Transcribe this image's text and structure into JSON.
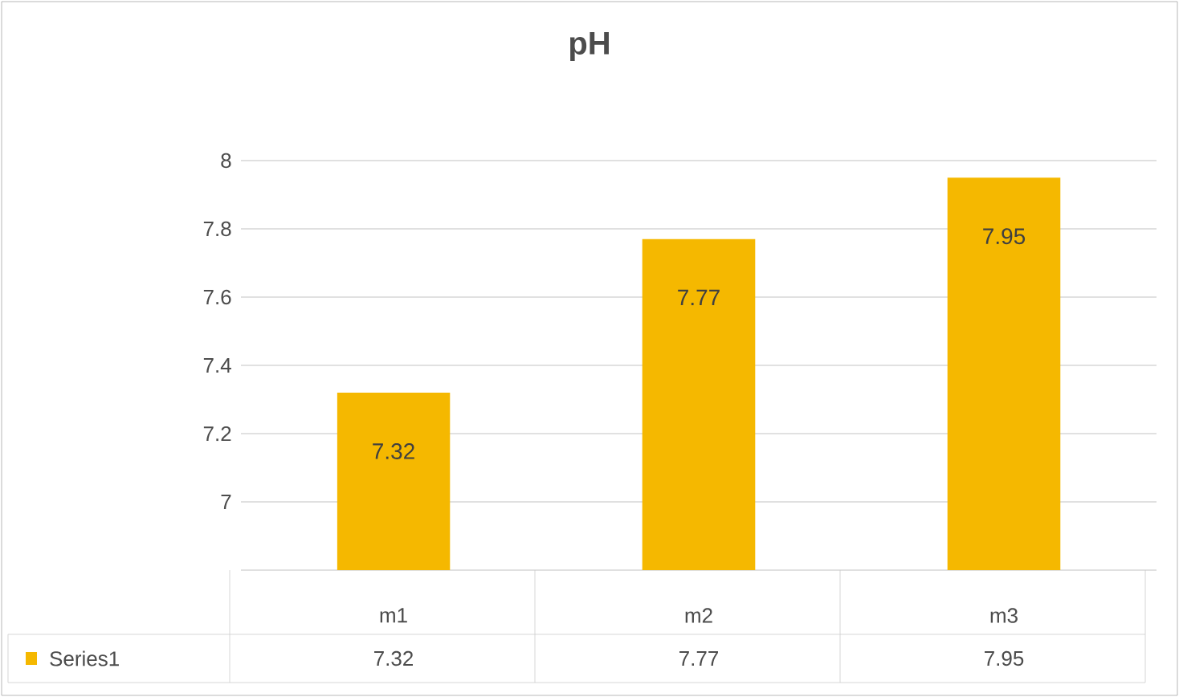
{
  "chart_data": {
    "type": "bar",
    "title": "pH",
    "categories": [
      "m1",
      "m2",
      "m3"
    ],
    "series": [
      {
        "name": "Series1",
        "color": "#f5b800",
        "values": [
          7.32,
          7.77,
          7.95
        ]
      }
    ],
    "annotations": [
      "7.32",
      "7.77",
      "7.95"
    ],
    "ylim": [
      6.8,
      8
    ],
    "yticks": [
      7,
      7.2,
      7.4,
      7.6,
      7.8,
      8
    ],
    "grid": "y",
    "legend": "bottom",
    "data_labels": true
  }
}
